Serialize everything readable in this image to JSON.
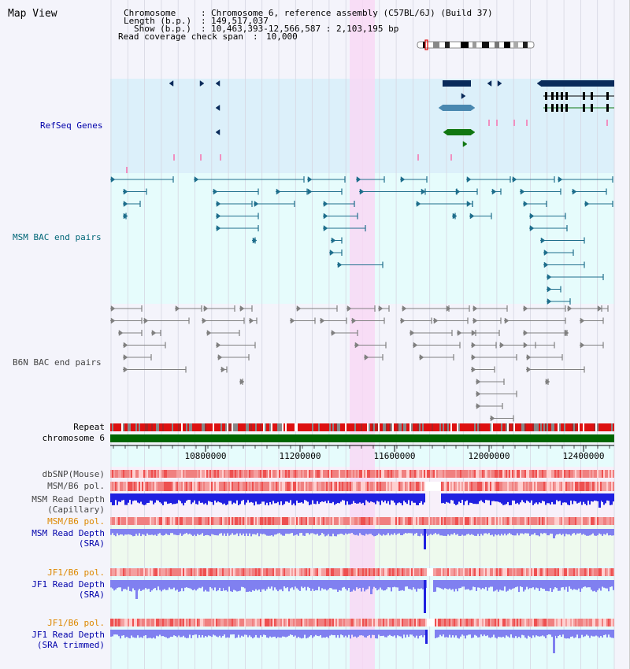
{
  "view_title": "Map View",
  "info": {
    "chromosome_key": "Chromosome",
    "chromosome_val": "Chromosome 6, reference assembly (C57BL/6J) (Build 37)",
    "length_key": "Length (b.p.)",
    "length_val": "149,517,037",
    "show_key": "Show (b.p.)",
    "show_val": "10,463,393-12,566,587 : 2,103,195 bp",
    "coverage_key": "Read coverage check span",
    "coverage_val": "10,000"
  },
  "track_labels": {
    "refseq": "RefSeq Genes",
    "msm_bac": "MSM BAC end pairs",
    "b6n_bac": "B6N BAC end pairs",
    "repeat": "Repeat",
    "chromosome": "chromosome 6",
    "dbsnp": "dbSNP(Mouse)",
    "msm_b6_pol_1": "MSM/B6 pol.",
    "msm_depth_cap_1": "MSM Read Depth",
    "msm_depth_cap_2": "(Capillary)",
    "msm_b6_pol_2": "MSM/B6 pol.",
    "msm_depth_sra_1": "MSM Read Depth",
    "msm_depth_sra_2": "(SRA)",
    "jf1_pol_1": "JF1/B6 pol.",
    "jf1_depth_sra_1": "JF1 Read Depth",
    "jf1_depth_sra_2": "(SRA)",
    "jf1_pol_2": "JF1/B6 pol.",
    "jf1_depth_trim_1": "JF1 Read Depth",
    "jf1_depth_trim_2": "(SRA trimmed)"
  },
  "axis_ticks": [
    "10800000",
    "11200000",
    "11600000",
    "12000000",
    "12400000"
  ],
  "colors": {
    "refseq_bg": "#dcf0fa",
    "msm_bg": "#e6fcfc",
    "b6n_bg": "#f4f4fb",
    "highlight": "#f8d8f4",
    "msm_pair": "#1e6e8c",
    "b6n_pair": "#808080",
    "gene_dark": "#0a2a5a",
    "gene_mid": "#4a88b0",
    "gene_green": "#117711",
    "depth_blue": "#2020e0",
    "depth_light": "#8080f0",
    "label_blue": "#0000aa",
    "label_teal": "#006677",
    "label_orange": "#dd8800"
  }
}
